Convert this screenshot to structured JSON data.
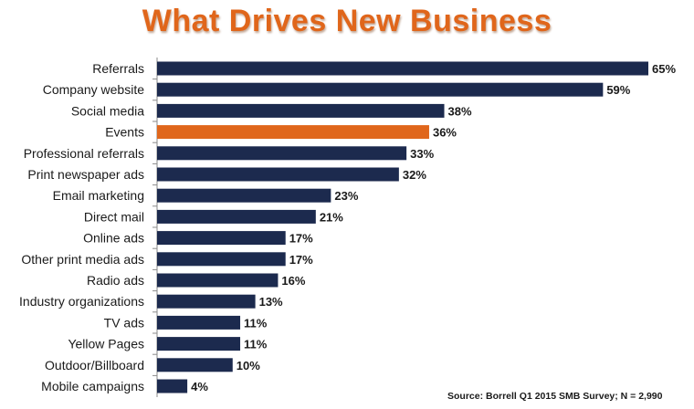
{
  "chart_data": {
    "type": "bar",
    "orientation": "horizontal",
    "title": "What Drives New Business",
    "categories": [
      "Referrals",
      "Company website",
      "Social media",
      "Events",
      "Professional referrals",
      "Print newspaper ads",
      "Email marketing",
      "Direct mail",
      "Online ads",
      "Other print media ads",
      "Radio ads",
      "Industry organizations",
      "TV ads",
      "Yellow Pages",
      "Outdoor/Billboard",
      "Mobile campaigns"
    ],
    "values": [
      65,
      59,
      38,
      36,
      33,
      32,
      23,
      21,
      17,
      17,
      16,
      13,
      11,
      11,
      10,
      4
    ],
    "value_labels": [
      "65%",
      "59%",
      "38%",
      "36%",
      "33%",
      "32%",
      "23%",
      "21%",
      "17%",
      "17%",
      "16%",
      "13%",
      "11%",
      "11%",
      "10%",
      "4%"
    ],
    "highlight_category": "Events",
    "xlim": [
      0,
      65
    ],
    "grid": false,
    "colors": {
      "bar": "#1c2a4e",
      "highlight": "#e0661b",
      "title": "#e0661b"
    },
    "source": "Source:  Borrell Q1 2015 SMB Survey; N = 2,990"
  }
}
